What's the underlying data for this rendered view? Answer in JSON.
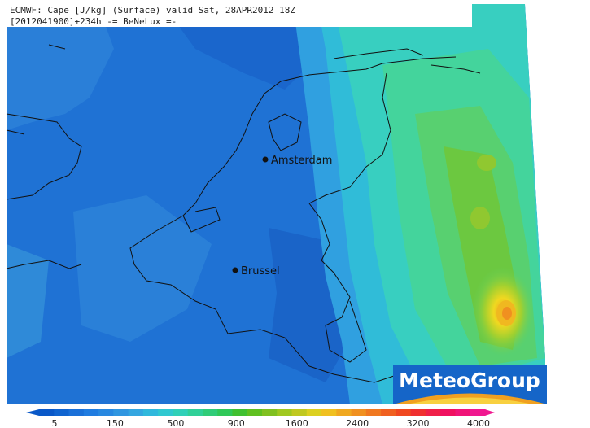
{
  "header": {
    "line1": "ECMWF: Cape [J/kg] (Surface) valid Sat, 28APR2012 18Z",
    "line2": "[2012041900]+234h -= BeNeLux =-"
  },
  "cities": [
    {
      "name": "Amsterdam"
    },
    {
      "name": "Brussel"
    }
  ],
  "logo": "MeteoGroup",
  "colorbar": {
    "ticks": [
      "5",
      "150",
      "500",
      "900",
      "1600",
      "2400",
      "3200",
      "4000"
    ],
    "colors": [
      "#0a58c8",
      "#1064d0",
      "#1a70d8",
      "#207ce0",
      "#2888e0",
      "#3096e0",
      "#34a6e0",
      "#30b8dc",
      "#30c8d0",
      "#30d0b8",
      "#30d098",
      "#30cc78",
      "#30c858",
      "#40c030",
      "#60c020",
      "#80c020",
      "#a0c820",
      "#c0c820",
      "#dcd020",
      "#f0c020",
      "#f0a820",
      "#f09020",
      "#f07820",
      "#f06020",
      "#f04820",
      "#f03030",
      "#f02048",
      "#f01060",
      "#f01478",
      "#f01890"
    ]
  }
}
